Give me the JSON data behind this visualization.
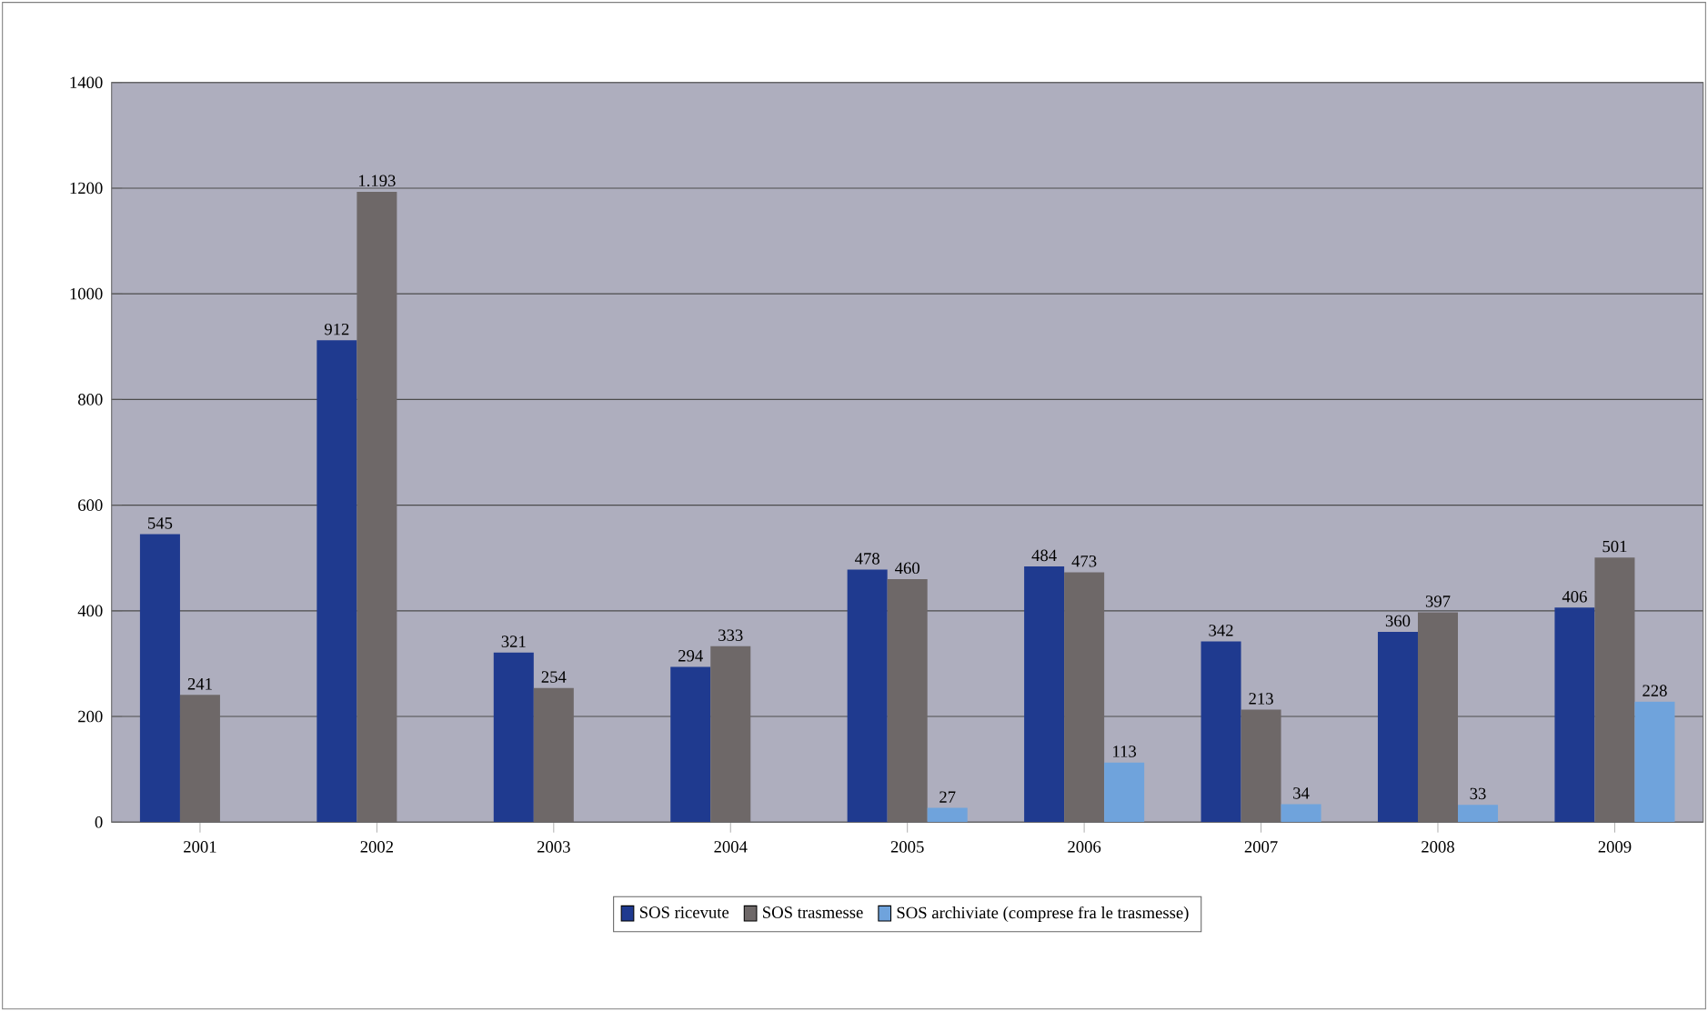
{
  "chart_data": {
    "type": "bar",
    "categories": [
      "2001",
      "2002",
      "2003",
      "2004",
      "2005",
      "2006",
      "2007",
      "2008",
      "2009"
    ],
    "series": [
      {
        "name": "SOS ricevute",
        "color": "#1f3a8f",
        "values": [
          545,
          912,
          321,
          294,
          478,
          484,
          342,
          360,
          406
        ],
        "value_labels": [
          "545",
          "912",
          "321",
          "294",
          "478",
          "484",
          "342",
          "360",
          "406"
        ]
      },
      {
        "name": "SOS trasmesse",
        "color": "#6e6868",
        "values": [
          241,
          1193,
          254,
          333,
          460,
          473,
          213,
          397,
          501
        ],
        "value_labels": [
          "241",
          "1.193",
          "254",
          "333",
          "460",
          "473",
          "213",
          "397",
          "501"
        ]
      },
      {
        "name": "SOS archiviate (comprese fra le trasmesse)",
        "color": "#6fa3dc",
        "values": [
          null,
          null,
          null,
          null,
          27,
          113,
          34,
          33,
          228
        ],
        "value_labels": [
          null,
          null,
          null,
          null,
          "27",
          "113",
          "34",
          "33",
          "228"
        ]
      }
    ],
    "ylim": [
      0,
      1400
    ],
    "yticks": [
      0,
      200,
      400,
      600,
      800,
      1000,
      1200,
      1400
    ],
    "grid": "y",
    "legend": "bottom"
  }
}
